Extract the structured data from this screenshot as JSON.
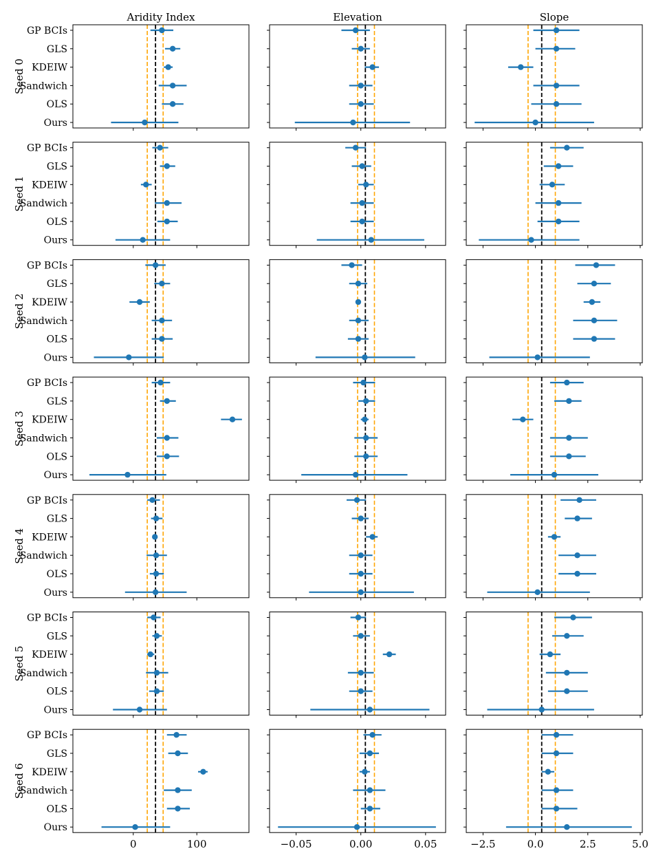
{
  "chart_data": {
    "type": "forest-grid",
    "methods": [
      "GP BCIs",
      "GLS",
      "KDEIW",
      "Sandwich",
      "OLS",
      "Ours"
    ],
    "seed_labels": [
      "Seed 0",
      "Seed 1",
      "Seed 2",
      "Seed 3",
      "Seed 4",
      "Seed 5",
      "Seed 6"
    ],
    "columns": [
      {
        "title": "Aridity Index",
        "xlim": [
          -95,
          182
        ],
        "xticks": [
          0,
          100
        ],
        "xtick_labels": [
          "0",
          "100"
        ],
        "truth": 35,
        "bounds": [
          22,
          47
        ],
        "seeds": [
          [
            [
              45,
              27,
              63
            ],
            [
              62,
              50,
              74
            ],
            [
              55,
              48,
              62
            ],
            [
              62,
              40,
              84
            ],
            [
              62,
              45,
              79
            ],
            [
              18,
              -35,
              71
            ]
          ],
          [
            [
              42,
              30,
              55
            ],
            [
              53,
              42,
              66
            ],
            [
              20,
              12,
              29
            ],
            [
              53,
              34,
              76
            ],
            [
              53,
              38,
              70
            ],
            [
              15,
              -28,
              58
            ]
          ],
          [
            [
              35,
              19,
              51
            ],
            [
              45,
              33,
              58
            ],
            [
              10,
              -6,
              26
            ],
            [
              45,
              29,
              61
            ],
            [
              45,
              29,
              62
            ],
            [
              -7,
              -62,
              48
            ]
          ],
          [
            [
              43,
              29,
              58
            ],
            [
              53,
              42,
              67
            ],
            [
              156,
              138,
              171
            ],
            [
              53,
              37,
              71
            ],
            [
              53,
              37,
              72
            ],
            [
              -9,
              -69,
              52
            ]
          ],
          [
            [
              30,
              22,
              42
            ],
            [
              36,
              28,
              46
            ],
            [
              34,
              30,
              38
            ],
            [
              36,
              21,
              53
            ],
            [
              36,
              26,
              48
            ],
            [
              35,
              -13,
              84
            ]
          ],
          [
            [
              32,
              22,
              43
            ],
            [
              37,
              30,
              45
            ],
            [
              27,
              22,
              33
            ],
            [
              37,
              20,
              55
            ],
            [
              37,
              25,
              48
            ],
            [
              10,
              -32,
              53
            ]
          ],
          [
            [
              68,
              53,
              84
            ],
            [
              70,
              55,
              86
            ],
            [
              110,
              102,
              117
            ],
            [
              70,
              48,
              92
            ],
            [
              70,
              53,
              89
            ],
            [
              3,
              -50,
              58
            ]
          ]
        ]
      },
      {
        "title": "Elevation",
        "xlim": [
          -0.0705,
          0.0655
        ],
        "xticks": [
          -0.05,
          0.0,
          0.05
        ],
        "xtick_labels": [
          "−0.05",
          "0.00",
          "0.05"
        ],
        "truth": 0.0035,
        "bounds": [
          -0.0025,
          0.0105
        ],
        "seeds": [
          [
            [
              -0.004,
              -0.015,
              0.007
            ],
            [
              0.0,
              -0.007,
              0.007
            ],
            [
              0.009,
              0.003,
              0.014
            ],
            [
              0.0,
              -0.009,
              0.009
            ],
            [
              0.0,
              -0.009,
              0.01
            ],
            [
              -0.006,
              -0.051,
              0.038
            ]
          ],
          [
            [
              -0.004,
              -0.012,
              0.004
            ],
            [
              0.001,
              -0.007,
              0.008
            ],
            [
              0.004,
              -0.002,
              0.01
            ],
            [
              0.001,
              -0.008,
              0.01
            ],
            [
              0.001,
              -0.008,
              0.01
            ],
            [
              0.008,
              -0.034,
              0.049
            ]
          ],
          [
            [
              -0.007,
              -0.015,
              0.001
            ],
            [
              -0.002,
              -0.009,
              0.005
            ],
            [
              -0.002,
              -0.004,
              0.0
            ],
            [
              -0.002,
              -0.009,
              0.006
            ],
            [
              -0.002,
              -0.01,
              0.006
            ],
            [
              0.003,
              -0.035,
              0.042
            ]
          ],
          [
            [
              0.002,
              -0.006,
              0.011
            ],
            [
              0.004,
              -0.002,
              0.011
            ],
            [
              0.003,
              0.0,
              0.006
            ],
            [
              0.004,
              -0.005,
              0.013
            ],
            [
              0.004,
              -0.005,
              0.013
            ],
            [
              -0.004,
              -0.046,
              0.036
            ]
          ],
          [
            [
              -0.003,
              -0.011,
              0.004
            ],
            [
              0.0,
              -0.007,
              0.006
            ],
            [
              0.009,
              0.004,
              0.013
            ],
            [
              0.0,
              -0.009,
              0.009
            ],
            [
              0.0,
              -0.009,
              0.009
            ],
            [
              0.0,
              -0.04,
              0.041
            ]
          ],
          [
            [
              -0.002,
              -0.008,
              0.004
            ],
            [
              0.0,
              -0.006,
              0.007
            ],
            [
              0.022,
              0.017,
              0.027
            ],
            [
              0.0,
              -0.01,
              0.01
            ],
            [
              0.0,
              -0.009,
              0.009
            ],
            [
              0.007,
              -0.039,
              0.053
            ]
          ],
          [
            [
              0.009,
              0.002,
              0.016
            ],
            [
              0.007,
              -0.001,
              0.014
            ],
            [
              0.003,
              -0.001,
              0.007
            ],
            [
              0.007,
              -0.006,
              0.019
            ],
            [
              0.007,
              0.0,
              0.015
            ],
            [
              -0.003,
              -0.064,
              0.058
            ]
          ]
        ]
      },
      {
        "title": "Slope",
        "xlim": [
          -3.3,
          5.1
        ],
        "xticks": [
          -2.5,
          0.0,
          2.5,
          5.0
        ],
        "xtick_labels": [
          "−2.5",
          "0.0",
          "2.5",
          "5.0"
        ],
        "truth": 0.3,
        "bounds": [
          -0.35,
          0.95
        ],
        "seeds": [
          [
            [
              1.0,
              -0.1,
              2.1
            ],
            [
              1.0,
              0.0,
              1.9
            ],
            [
              -0.7,
              -1.3,
              -0.1
            ],
            [
              1.0,
              -0.1,
              2.1
            ],
            [
              1.0,
              -0.2,
              2.2
            ],
            [
              0.0,
              -2.9,
              2.8
            ]
          ],
          [
            [
              1.5,
              0.7,
              2.3
            ],
            [
              1.1,
              0.4,
              1.8
            ],
            [
              0.8,
              0.2,
              1.4
            ],
            [
              1.1,
              0.0,
              2.2
            ],
            [
              1.1,
              0.1,
              2.1
            ],
            [
              -0.2,
              -2.7,
              2.1
            ]
          ],
          [
            [
              2.9,
              1.9,
              3.8
            ],
            [
              2.8,
              2.0,
              3.6
            ],
            [
              2.7,
              2.3,
              3.1
            ],
            [
              2.8,
              1.8,
              3.9
            ],
            [
              2.8,
              1.8,
              3.8
            ],
            [
              0.1,
              -2.2,
              2.6
            ]
          ],
          [
            [
              1.5,
              0.7,
              2.3
            ],
            [
              1.6,
              0.9,
              2.2
            ],
            [
              -0.6,
              -1.1,
              -0.1
            ],
            [
              1.6,
              0.7,
              2.5
            ],
            [
              1.6,
              0.7,
              2.4
            ],
            [
              0.9,
              -1.2,
              3.0
            ]
          ],
          [
            [
              2.1,
              1.2,
              2.9
            ],
            [
              2.0,
              1.4,
              2.7
            ],
            [
              0.9,
              0.6,
              1.2
            ],
            [
              2.0,
              1.1,
              2.9
            ],
            [
              2.0,
              1.1,
              2.9
            ],
            [
              0.1,
              -2.3,
              2.6
            ]
          ],
          [
            [
              1.8,
              0.9,
              2.7
            ],
            [
              1.5,
              0.8,
              2.3
            ],
            [
              0.7,
              0.2,
              1.2
            ],
            [
              1.5,
              0.5,
              2.5
            ],
            [
              1.5,
              0.6,
              2.5
            ],
            [
              0.3,
              -2.3,
              2.8
            ]
          ],
          [
            [
              1.0,
              0.3,
              1.8
            ],
            [
              1.0,
              0.3,
              1.8
            ],
            [
              0.6,
              0.3,
              0.9
            ],
            [
              1.0,
              0.3,
              1.8
            ],
            [
              1.0,
              0.3,
              2.0
            ],
            [
              1.5,
              -1.4,
              4.6
            ]
          ]
        ]
      }
    ]
  },
  "colors": {
    "point": "#1f77b4",
    "truth_line": "#000000",
    "bound_lines": "#ffa500",
    "axes": "#000000"
  }
}
